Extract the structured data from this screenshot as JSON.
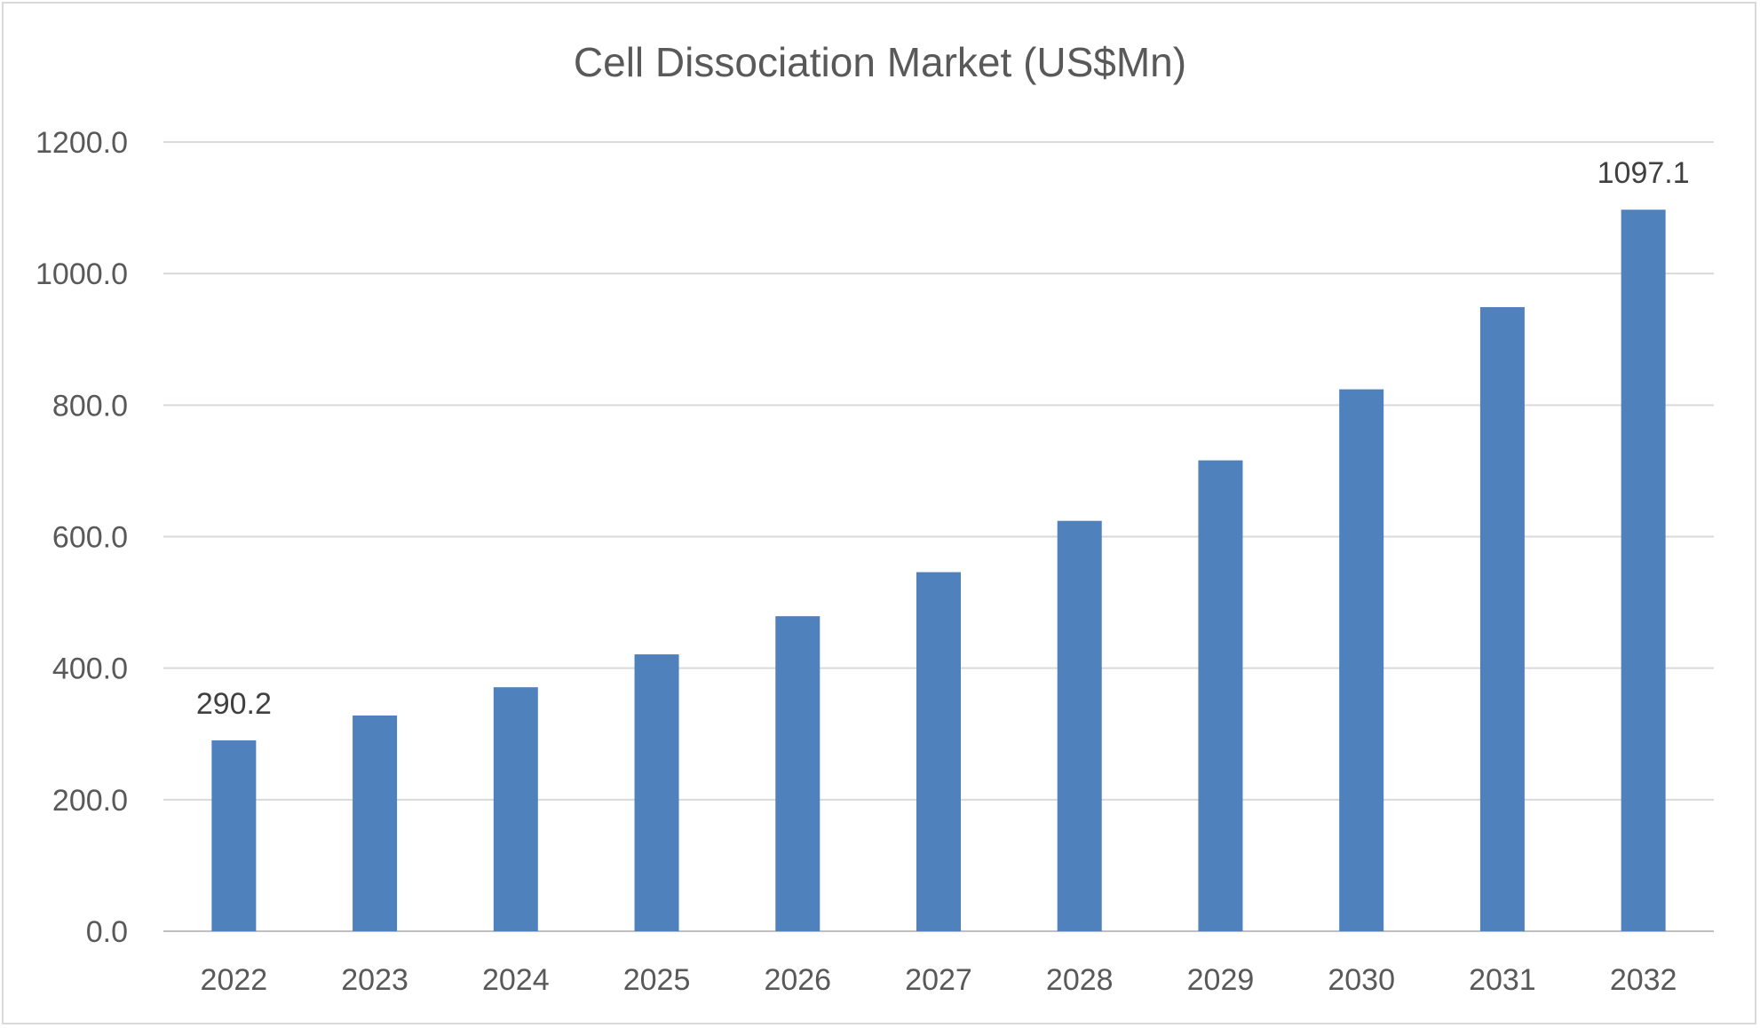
{
  "chart_data": {
    "type": "bar",
    "title": "Cell Dissociation  Market (US$Mn)",
    "xlabel": "",
    "ylabel": "",
    "categories": [
      "2022",
      "2023",
      "2024",
      "2025",
      "2026",
      "2027",
      "2028",
      "2029",
      "2030",
      "2031",
      "2032"
    ],
    "values": [
      290.2,
      328,
      371,
      421,
      479,
      546,
      624,
      716,
      824,
      949,
      1097.1
    ],
    "ylim": [
      0,
      1200
    ],
    "yticks": [
      "0.0",
      "200.0",
      "400.0",
      "600.0",
      "800.0",
      "1000.0",
      "1200.0"
    ],
    "data_labels": [
      {
        "category": "2022",
        "text": "290.2"
      },
      {
        "category": "2032",
        "text": "1097.1"
      }
    ],
    "grid": true,
    "legend": "none",
    "colors": {
      "bar": "#4f81bd",
      "grid": "#d9d9d9",
      "text": "#595959"
    }
  }
}
